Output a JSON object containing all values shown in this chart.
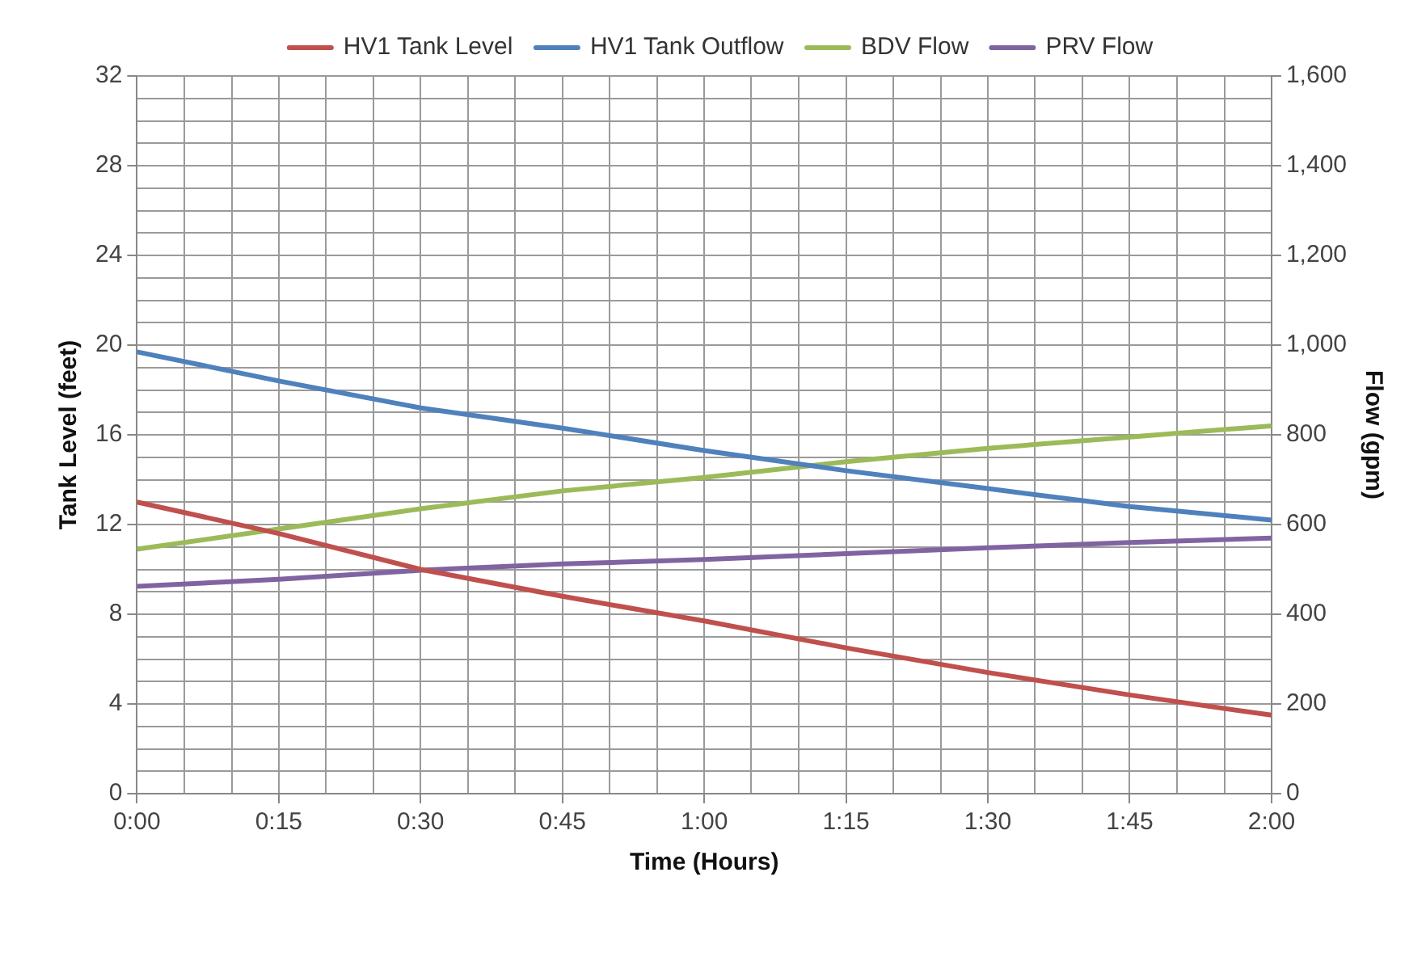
{
  "chart_data": {
    "type": "line",
    "xlabel": "Time (Hours)",
    "ylabel": "Tank Level (feet)",
    "y2label": "Flow (gpm)",
    "x": [
      0,
      0.25,
      0.5,
      0.75,
      1,
      1.25,
      1.5,
      1.75,
      2
    ],
    "series": [
      {
        "name": "HV1 Tank Level",
        "color": "#c0504d",
        "values": [
          13.0,
          11.6,
          10.0,
          8.8,
          7.7,
          6.5,
          5.4,
          4.4,
          3.5
        ]
      },
      {
        "name": "HV1 Tank Outflow",
        "color": "#4f81bd",
        "axis": "y2",
        "values": [
          985,
          920,
          860,
          815,
          765,
          720,
          680,
          640,
          610
        ]
      },
      {
        "name": "BDV Flow",
        "color": "#9bbb59",
        "axis": "y2",
        "values": [
          545,
          590,
          635,
          675,
          705,
          740,
          770,
          795,
          820
        ]
      },
      {
        "name": "PRV Flow",
        "color": "#8064a2",
        "axis": "y2",
        "values": [
          462,
          478,
          498,
          512,
          522,
          535,
          548,
          560,
          570
        ]
      }
    ],
    "xlim": [
      0,
      2
    ],
    "xticks": [
      {
        "value": 0,
        "label": "0:00"
      },
      {
        "value": 0.083,
        "label": null
      },
      {
        "value": 0.167,
        "label": null
      },
      {
        "value": 0.25,
        "label": "0:15"
      },
      {
        "value": 0.333,
        "label": null
      },
      {
        "value": 0.417,
        "label": null
      },
      {
        "value": 0.5,
        "label": "0:30"
      },
      {
        "value": 0.583,
        "label": null
      },
      {
        "value": 0.667,
        "label": null
      },
      {
        "value": 0.75,
        "label": "0:45"
      },
      {
        "value": 0.833,
        "label": null
      },
      {
        "value": 0.917,
        "label": null
      },
      {
        "value": 1,
        "label": "1:00"
      },
      {
        "value": 1.083,
        "label": null
      },
      {
        "value": 1.167,
        "label": null
      },
      {
        "value": 1.25,
        "label": "1:15"
      },
      {
        "value": 1.333,
        "label": null
      },
      {
        "value": 1.417,
        "label": null
      },
      {
        "value": 1.5,
        "label": "1:30"
      },
      {
        "value": 1.583,
        "label": null
      },
      {
        "value": 1.667,
        "label": null
      },
      {
        "value": 1.75,
        "label": "1:45"
      },
      {
        "value": 1.833,
        "label": null
      },
      {
        "value": 1.917,
        "label": null
      },
      {
        "value": 2,
        "label": "2:00"
      }
    ],
    "ylim": [
      0,
      32
    ],
    "yticks": [
      0,
      {
        "value": 1,
        "label": null
      },
      {
        "value": 2,
        "label": null
      },
      {
        "value": 3,
        "label": null
      },
      4,
      {
        "value": 5,
        "label": null
      },
      {
        "value": 6,
        "label": null
      },
      {
        "value": 7,
        "label": null
      },
      8,
      {
        "value": 9,
        "label": null
      },
      {
        "value": 10,
        "label": null
      },
      {
        "value": 11,
        "label": null
      },
      12,
      {
        "value": 13,
        "label": null
      },
      {
        "value": 14,
        "label": null
      },
      {
        "value": 15,
        "label": null
      },
      16,
      {
        "value": 17,
        "label": null
      },
      {
        "value": 18,
        "label": null
      },
      {
        "value": 19,
        "label": null
      },
      20,
      {
        "value": 21,
        "label": null
      },
      {
        "value": 22,
        "label": null
      },
      {
        "value": 23,
        "label": null
      },
      24,
      {
        "value": 25,
        "label": null
      },
      {
        "value": 26,
        "label": null
      },
      {
        "value": 27,
        "label": null
      },
      28,
      {
        "value": 29,
        "label": null
      },
      {
        "value": 30,
        "label": null
      },
      {
        "value": 31,
        "label": null
      },
      32
    ],
    "y2lim": [
      0,
      1600
    ],
    "y2ticks": [
      0,
      200,
      400,
      600,
      800,
      {
        "value": 1000,
        "label": "1,000"
      },
      {
        "value": 1200,
        "label": "1,200"
      },
      {
        "value": 1400,
        "label": "1,400"
      },
      {
        "value": 1600,
        "label": "1,600"
      }
    ],
    "grid": true,
    "legend": "top",
    "marker": "none",
    "line_style": "solid"
  }
}
